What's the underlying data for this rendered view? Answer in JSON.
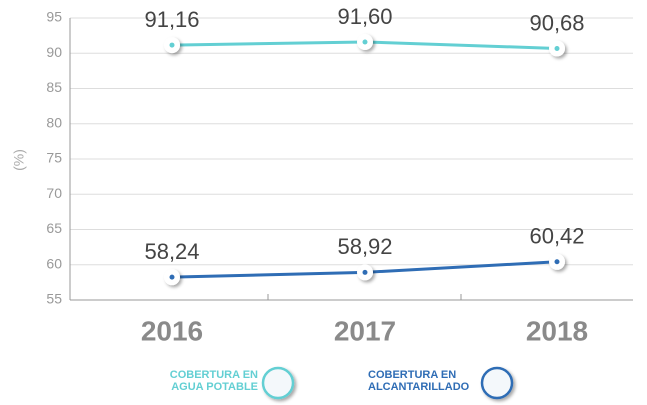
{
  "chart_data": {
    "type": "line",
    "y_label": "(%)",
    "categories": [
      "2016",
      "2017",
      "2018"
    ],
    "series": [
      {
        "name": "COBERTURA EN AGUA POTABLE",
        "color": "#63cfd3",
        "values": [
          91.16,
          91.6,
          90.68
        ],
        "value_labels": [
          "91,16",
          "91,60",
          "90,68"
        ]
      },
      {
        "name": "COBERTURA EN ALCANTARILLADO",
        "color": "#2f6db5",
        "values": [
          58.24,
          58.92,
          60.42
        ],
        "value_labels": [
          "58,24",
          "58,92",
          "60,42"
        ]
      }
    ],
    "ylim": [
      55,
      95
    ],
    "yticks": [
      55,
      60,
      65,
      70,
      75,
      80,
      85,
      90,
      95
    ],
    "grid": true
  }
}
